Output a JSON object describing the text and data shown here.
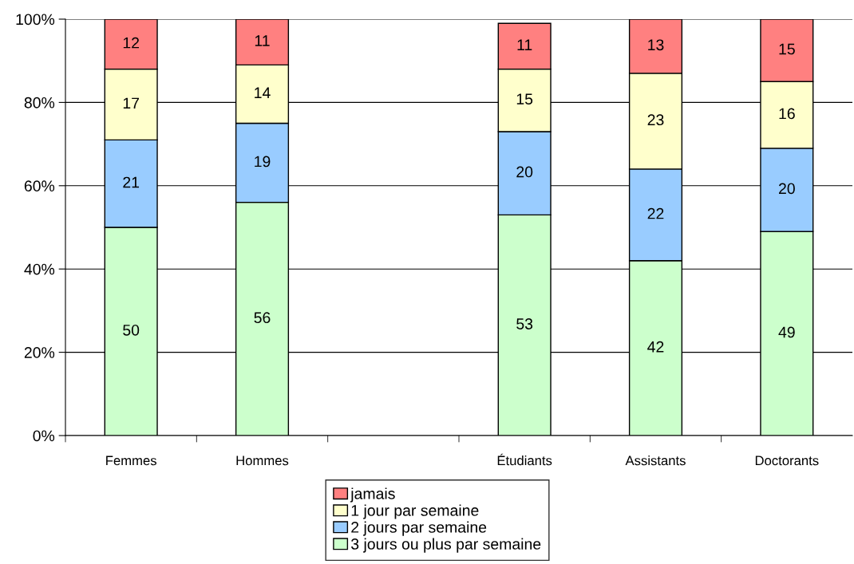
{
  "chart_data": {
    "type": "bar",
    "stacked": true,
    "categories": [
      "Femmes",
      "Hommes",
      null,
      "Étudiants",
      "Assistants",
      "Doctorants"
    ],
    "series": [
      {
        "name": "3 jours ou plus par semaine",
        "color": "#ccffcc",
        "values": [
          50,
          56,
          null,
          53,
          42,
          49
        ]
      },
      {
        "name": "2 jours par semaine",
        "color": "#99ccff",
        "values": [
          21,
          19,
          null,
          20,
          22,
          20
        ]
      },
      {
        "name": "1 jour par semaine",
        "color": "#ffffcc",
        "values": [
          17,
          14,
          null,
          15,
          23,
          16
        ]
      },
      {
        "name": "jamais",
        "color": "#ff8080",
        "values": [
          12,
          11,
          null,
          11,
          13,
          15
        ]
      }
    ],
    "ylim": [
      0,
      100
    ],
    "yticks": [
      {
        "value": 0,
        "label": "0%"
      },
      {
        "value": 20,
        "label": "20%"
      },
      {
        "value": 40,
        "label": "40%"
      },
      {
        "value": 60,
        "label": "60%"
      },
      {
        "value": 80,
        "label": "80%"
      },
      {
        "value": 100,
        "label": "100%"
      }
    ],
    "grid": "y",
    "legend": "bottom",
    "data_labels": true
  }
}
